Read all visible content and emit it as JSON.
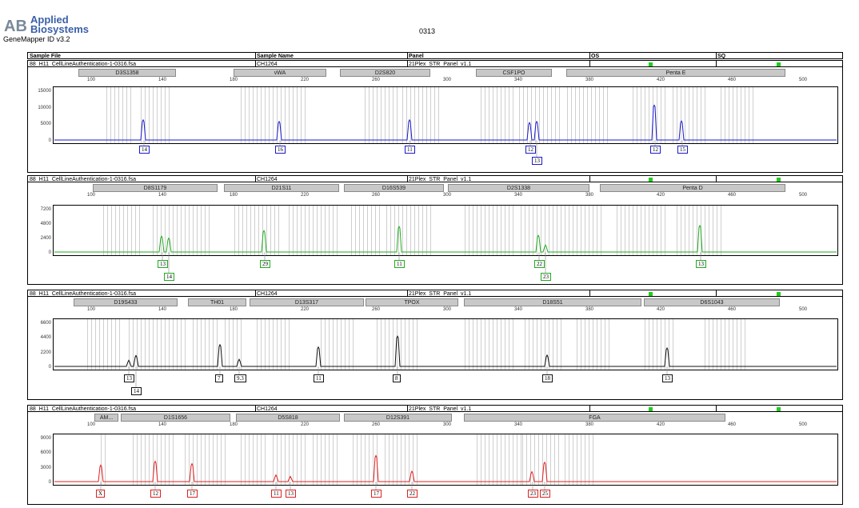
{
  "header": {
    "logo_line1": "Applied",
    "logo_line2": "Biosystems",
    "logo_text": "AB",
    "app_version": "GeneMapper ID v3.2",
    "doc_title": "0313"
  },
  "columns": {
    "sample_file": "Sample File",
    "sample_name": "Sample Name",
    "panel": "Panel",
    "os": "OS",
    "sq": "SQ"
  },
  "x_ticks": [
    "100",
    "140",
    "180",
    "220",
    "260",
    "300",
    "340",
    "380",
    "420",
    "460",
    "500"
  ],
  "colors": {
    "blue": "#1a1acc",
    "green": "#22aa22",
    "black": "#111111",
    "red": "#e02020",
    "bin": "#cfcfcf",
    "locus": "#c8c8c8",
    "status": "#22cc22"
  },
  "panels": [
    {
      "sample_file": "88_H11_CellLineAuthentication-1-0316.fsa",
      "sample_name": "CH1264",
      "panel": "21Plex_STR_Panel_v1.1",
      "dye": "blue",
      "y_ticks": [
        "15000",
        "10000",
        "5000",
        "0"
      ],
      "loci": [
        "D3S1358",
        "vWA",
        "D2S820",
        "CSF1PO",
        "Penta E"
      ],
      "alleles": [
        "14",
        "16",
        "11",
        "12",
        "13",
        "12",
        "15"
      ]
    },
    {
      "sample_file": "88_H11_CellLineAuthentication-1-0316.fsa",
      "sample_name": "CH1264",
      "panel": "21Plex_STR_Panel_v1.1",
      "dye": "green",
      "y_ticks": [
        "7200",
        "4800",
        "2400",
        "0"
      ],
      "loci": [
        "D8S1179",
        "D21S11",
        "D16S539",
        "D2S1338",
        "Penta D"
      ],
      "alleles": [
        "13",
        "14",
        "29",
        "11",
        "22",
        "23",
        "13"
      ]
    },
    {
      "sample_file": "88_H11_CellLineAuthentication-1-0316.fsa",
      "sample_name": "CH1264",
      "panel": "21Plex_STR_Panel_v1.1",
      "dye": "black",
      "y_ticks": [
        "6600",
        "4400",
        "2200",
        "0"
      ],
      "loci": [
        "D19S433",
        "TH01",
        "D13S317",
        "TPOX",
        "D18S51",
        "D6S1043"
      ],
      "alleles": [
        "13",
        "14",
        "7",
        "9.3",
        "11",
        "8",
        "18",
        "13"
      ]
    },
    {
      "sample_file": "88_H11_CellLineAuthentication-1-0316.fsa",
      "sample_name": "CH1264",
      "panel": "21Plex_STR_Panel_v1.1",
      "dye": "red",
      "y_ticks": [
        "9000",
        "6000",
        "3000",
        "0"
      ],
      "loci": [
        "AM...",
        "D1S1656",
        "D5S818",
        "D12S391",
        "FGA"
      ],
      "alleles": [
        "X",
        "12",
        "17",
        "11",
        "13",
        "17",
        "22",
        "23",
        "25"
      ]
    }
  ]
}
